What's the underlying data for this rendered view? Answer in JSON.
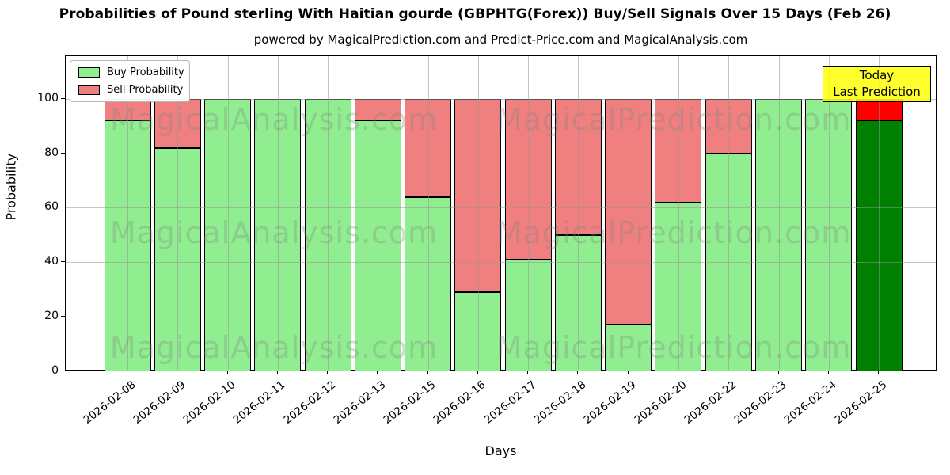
{
  "title": "Probabilities of Pound sterling With Haitian gourde (GBPHTG(Forex)) Buy/Sell Signals Over 15 Days (Feb 26)",
  "subtitle": "powered by MagicalPrediction.com and Predict-Price.com and MagicalAnalysis.com",
  "y_axis": {
    "label": "Probability",
    "ticks": [
      0,
      20,
      40,
      60,
      80,
      100
    ]
  },
  "x_axis": {
    "label": "Days"
  },
  "legend": [
    {
      "label": "Buy Probability",
      "color": "#90EE90"
    },
    {
      "label": "Sell Probability",
      "color": "#F08080"
    }
  ],
  "annotation": {
    "line1": "Today",
    "line2": "Last Prediction",
    "bg_color": "#FFFF00"
  },
  "watermarks": {
    "left": "MagicalAnalysis.com",
    "right": "MagicalPrediction.com"
  },
  "chart_data": {
    "type": "bar",
    "stacked": true,
    "title": "Probabilities of Pound sterling With Haitian gourde (GBPHTG(Forex)) Buy/Sell Signals Over 15 Days (Feb 26)",
    "xlabel": "Days",
    "ylabel": "Probability",
    "ylim": [
      0,
      115.6
    ],
    "grid": true,
    "dashed_line_y": 110.7,
    "legend_position": "upper left",
    "categories": [
      "2026-02-08",
      "2026-02-09",
      "2026-02-10",
      "2026-02-11",
      "2026-02-12",
      "2026-02-13",
      "2026-02-15",
      "2026-02-16",
      "2026-02-17",
      "2026-02-18",
      "2026-02-19",
      "2026-02-20",
      "2026-02-22",
      "2026-02-23",
      "2026-02-24",
      "2026-02-25"
    ],
    "series": [
      {
        "name": "Buy Probability",
        "values": [
          92,
          82,
          100,
          100,
          100,
          92,
          64,
          29,
          41,
          50,
          17,
          62,
          80,
          100,
          100,
          92
        ]
      },
      {
        "name": "Sell Probability",
        "values": [
          8,
          18,
          0,
          0,
          0,
          8,
          36,
          71,
          59,
          50,
          83,
          38,
          20,
          0,
          0,
          8
        ]
      }
    ],
    "colors": {
      "buy": "#90EE90",
      "sell": "#F08080",
      "today_buy": "#008000",
      "today_sell": "#FF0000",
      "bar_edge": "#000000"
    },
    "today_index": 15
  }
}
